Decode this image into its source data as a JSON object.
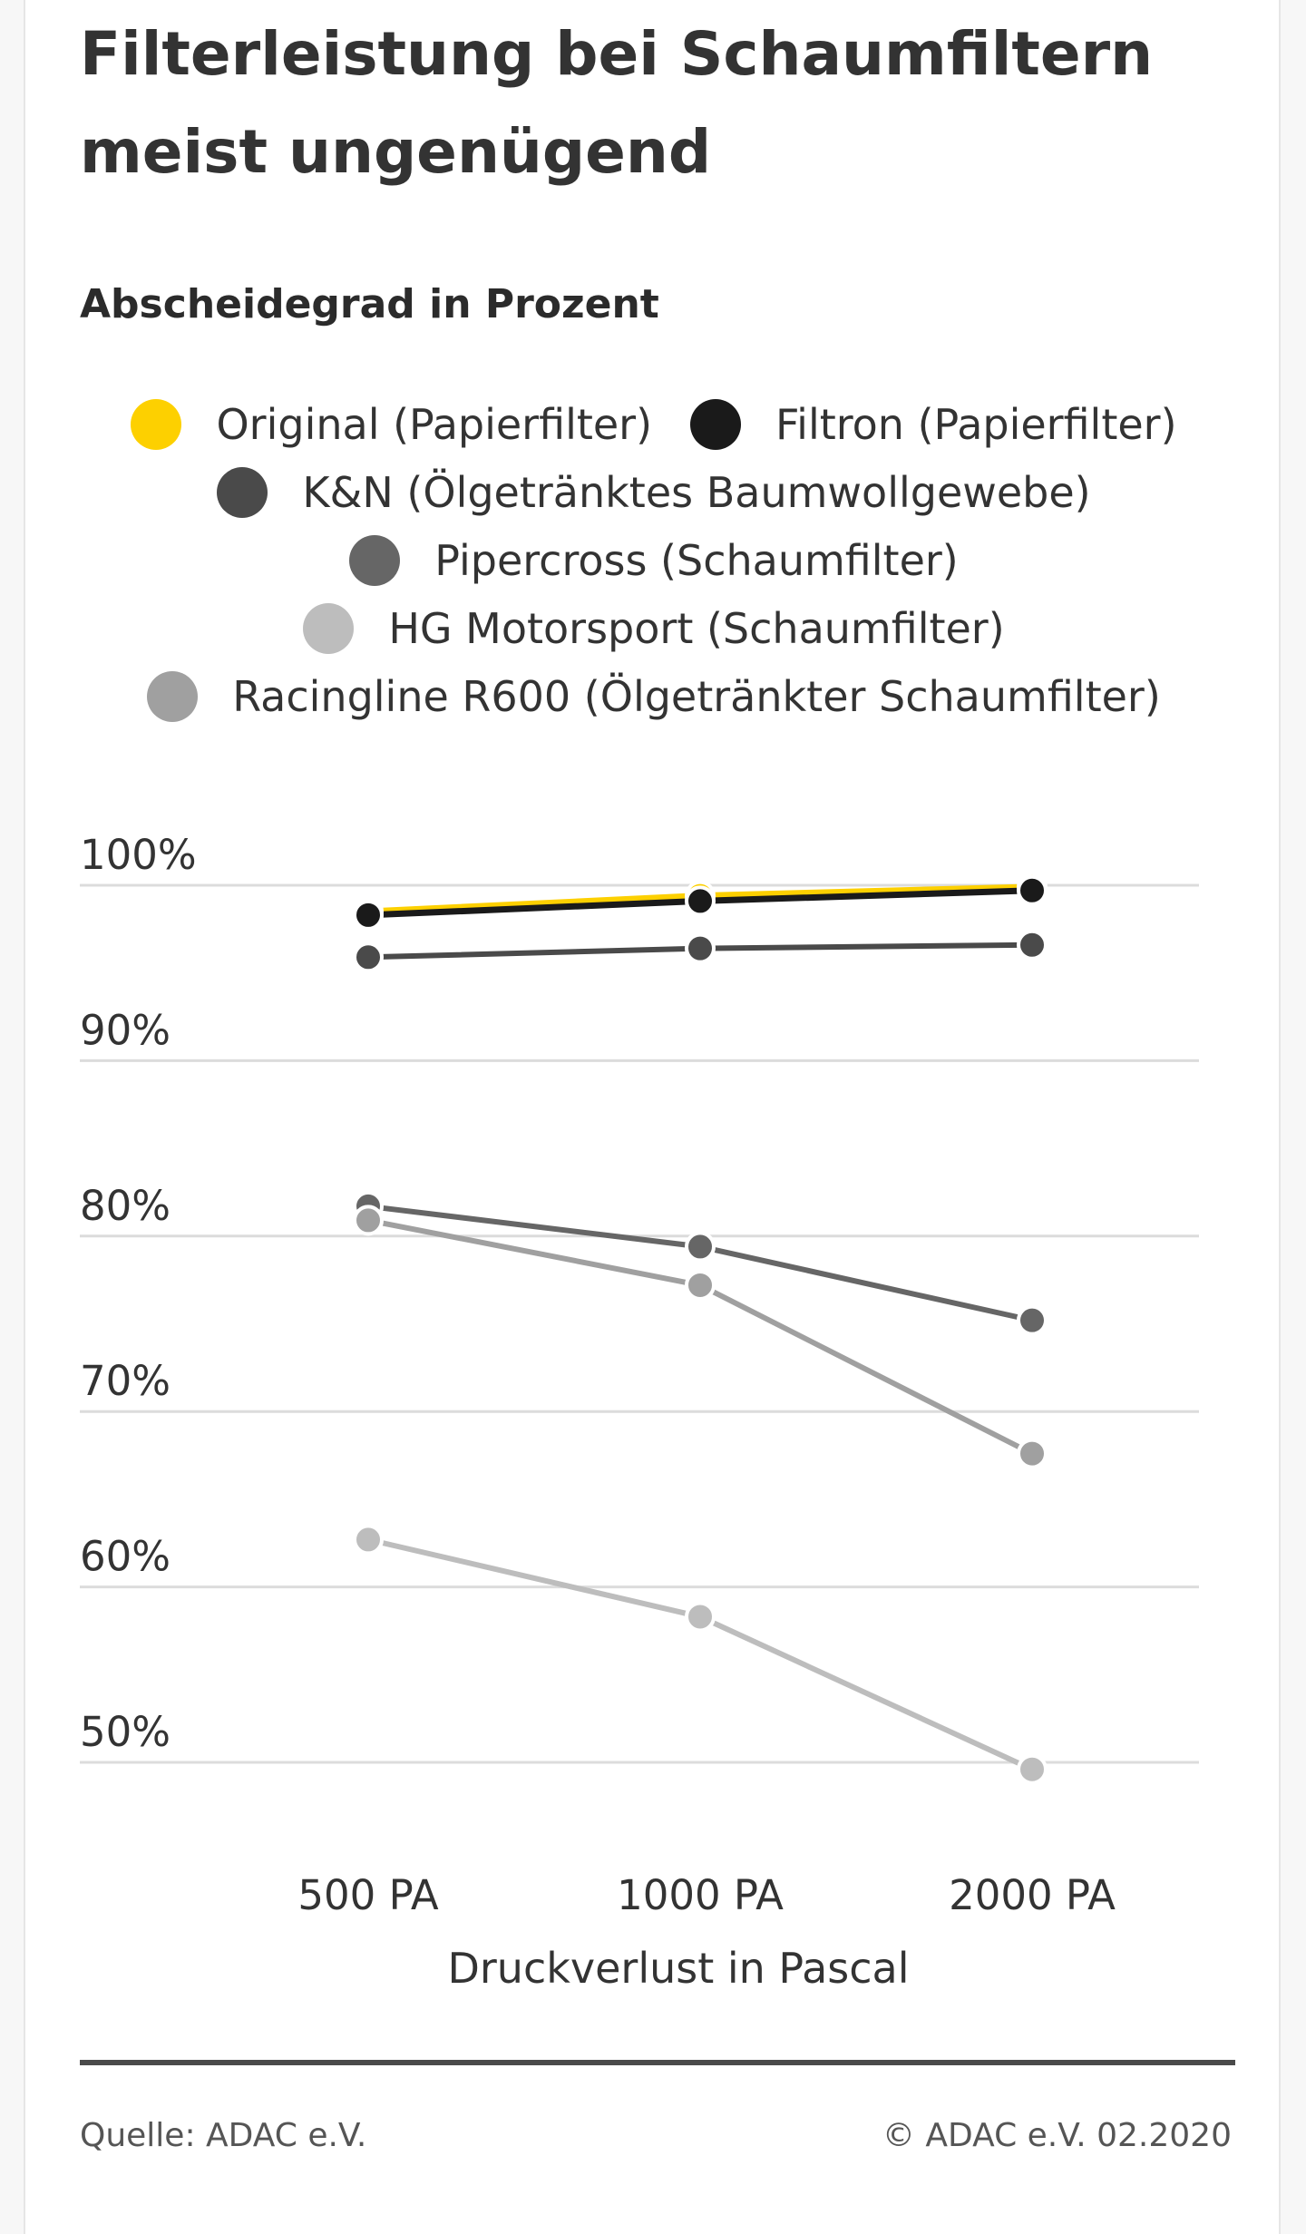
{
  "chart_data": {
    "type": "line",
    "title": "Filterleistung bei Schaumfiltern meist ungenügend",
    "subtitle": "Abscheidegrad in Prozent",
    "xlabel": "Druckverlust in Pascal",
    "categories": [
      "500 PA",
      "1000 PA",
      "2000 PA"
    ],
    "y_ticks": [
      "50%",
      "60%",
      "70%",
      "80%",
      "90%",
      "100%"
    ],
    "ylim": [
      50,
      100
    ],
    "grid": true,
    "legend_position": "top-center",
    "series": [
      {
        "name": "Original (Papierfilter)",
        "color": "#fdd000",
        "values": [
          98.5,
          99.4,
          99.9
        ]
      },
      {
        "name": "Filtron (Papierfilter)",
        "color": "#1a1a1a",
        "values": [
          98.3,
          99.1,
          99.7
        ]
      },
      {
        "name": "K&N (Ölgetränktes Baumwollgewebe)",
        "color": "#4a4a4a",
        "values": [
          95.9,
          96.4,
          96.6
        ]
      },
      {
        "name": "Pipercross (Schaumfilter)",
        "color": "#666666",
        "values": [
          81.7,
          79.4,
          75.2
        ]
      },
      {
        "name": "HG Motorsport (Schaumfilter)",
        "color": "#bdbdbd",
        "values": [
          62.7,
          58.3,
          49.6
        ]
      },
      {
        "name": "Racingline R600 (Ölgetränkter Schaumfilter)",
        "color": "#a0a0a0",
        "values": [
          80.9,
          77.2,
          67.6
        ]
      }
    ]
  },
  "footer": {
    "source": "Quelle: ADAC e.V.",
    "copyright": "© ADAC e.V. 02.2020"
  }
}
